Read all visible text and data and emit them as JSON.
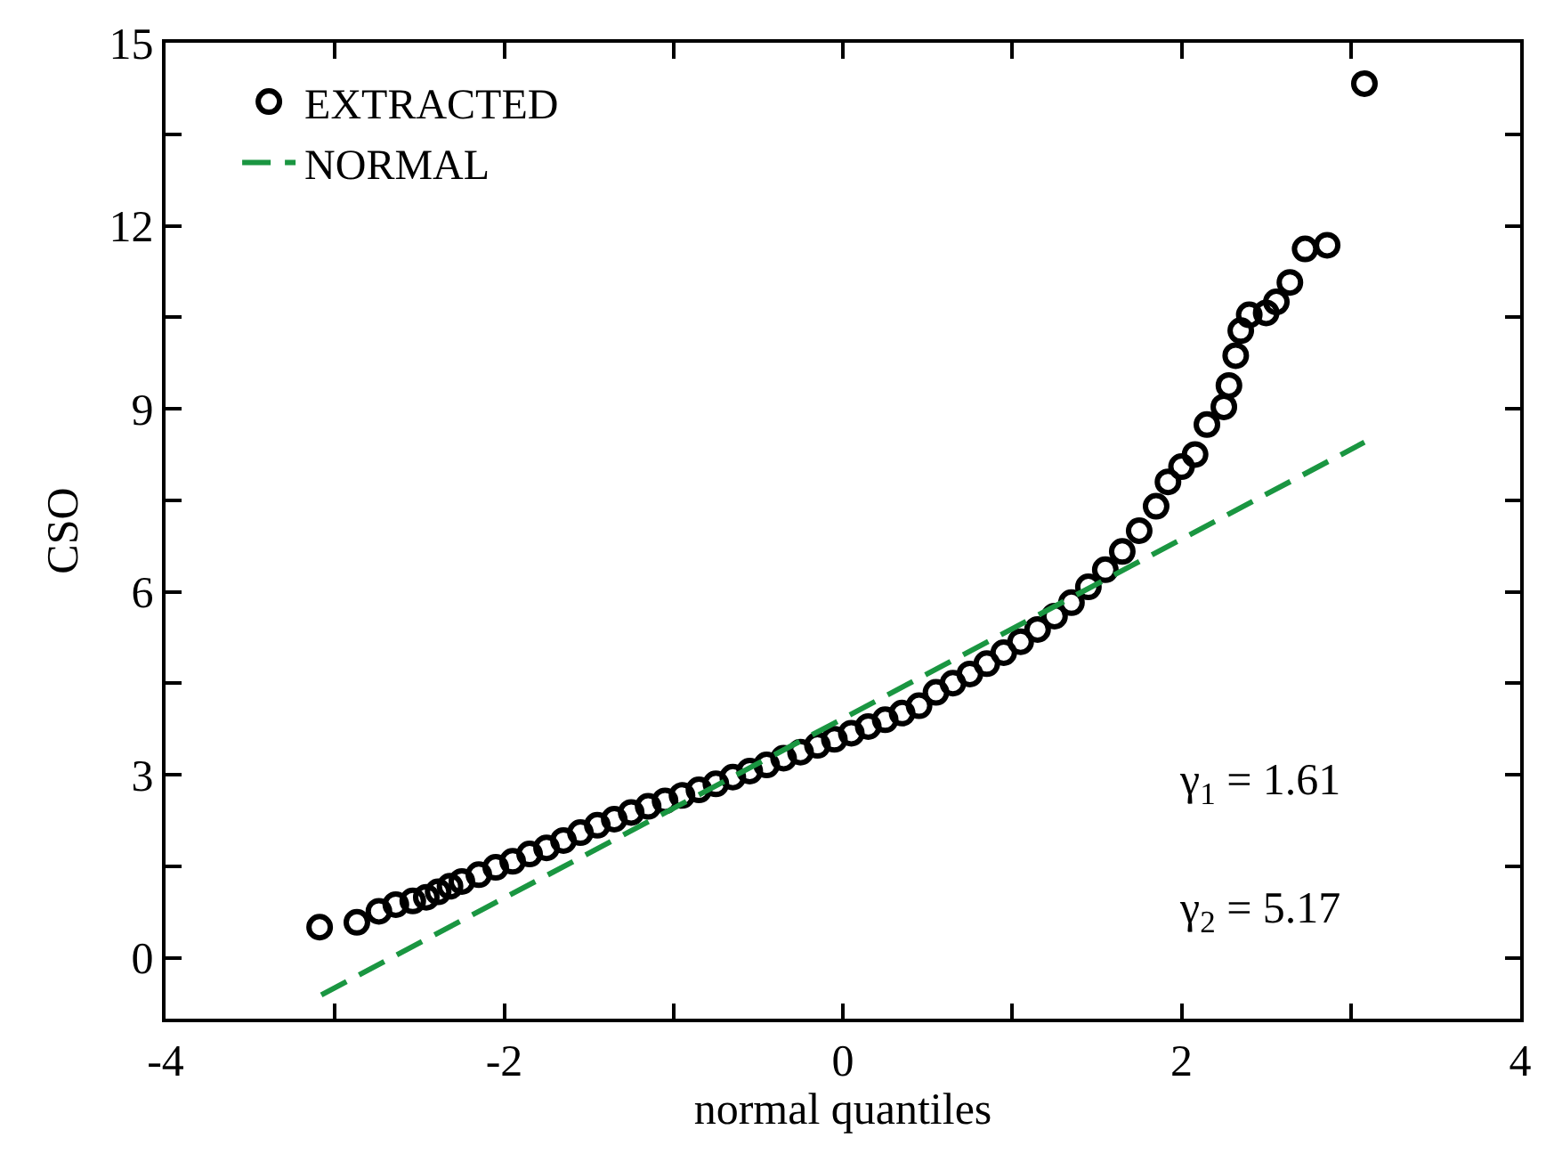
{
  "chart_data": {
    "type": "scatter",
    "xlabel": "normal quantiles",
    "ylabel": "CSO",
    "xlim": [
      -4,
      4
    ],
    "ylim": [
      -1,
      15
    ],
    "xticks": [
      -4,
      {
        "value": -3,
        "label": null
      },
      -2,
      {
        "value": -1,
        "label": null
      },
      0,
      {
        "value": 1,
        "label": null
      },
      2,
      {
        "value": 3,
        "label": null
      },
      4
    ],
    "yticks": [
      0,
      {
        "value": 1.5,
        "label": null
      },
      3,
      {
        "value": 4.5,
        "label": null
      },
      6,
      {
        "value": 7.5,
        "label": null
      },
      9,
      {
        "value": 10.5,
        "label": null
      },
      12,
      {
        "value": 13.5,
        "label": null
      },
      15
    ],
    "legend": "top left",
    "series": [
      {
        "name": "EXTRACTED",
        "marker": "circle",
        "color": "#000000",
        "x": [
          -3.09,
          -2.87,
          -2.74,
          -2.64,
          -2.54,
          -2.46,
          -2.39,
          -2.32,
          -2.25,
          -2.15,
          -2.05,
          -1.95,
          -1.85,
          -1.75,
          -1.65,
          -1.55,
          -1.45,
          -1.35,
          -1.25,
          -1.15,
          -1.05,
          -0.95,
          -0.85,
          -0.75,
          -0.65,
          -0.55,
          -0.45,
          -0.35,
          -0.25,
          -0.15,
          -0.05,
          0.05,
          0.15,
          0.25,
          0.35,
          0.45,
          0.55,
          0.65,
          0.75,
          0.85,
          0.95,
          1.05,
          1.15,
          1.25,
          1.35,
          1.45,
          1.55,
          1.65,
          1.75,
          1.85,
          1.92,
          2.0,
          2.08,
          2.15,
          2.25,
          2.28,
          2.32,
          2.35,
          2.4,
          2.5,
          2.56,
          2.64,
          2.73,
          2.86,
          3.08
        ],
        "values": [
          0.5,
          0.58,
          0.76,
          0.87,
          0.93,
          0.99,
          1.08,
          1.17,
          1.25,
          1.36,
          1.48,
          1.58,
          1.7,
          1.8,
          1.92,
          2.05,
          2.17,
          2.27,
          2.38,
          2.48,
          2.57,
          2.66,
          2.75,
          2.85,
          2.96,
          3.06,
          3.16,
          3.27,
          3.37,
          3.48,
          3.58,
          3.68,
          3.79,
          3.9,
          4.01,
          4.13,
          4.35,
          4.5,
          4.65,
          4.82,
          5.0,
          5.18,
          5.38,
          5.6,
          5.82,
          6.08,
          6.36,
          6.66,
          7.0,
          7.4,
          7.8,
          8.05,
          8.25,
          8.74,
          9.03,
          9.38,
          9.87,
          10.28,
          10.54,
          10.57,
          10.75,
          11.07,
          11.62,
          11.68,
          14.33
        ]
      },
      {
        "name": "NORMAL",
        "type": "line",
        "line_style": "dashed",
        "color": "#1a9641",
        "x": [
          -3.08,
          3.08
        ],
        "values": [
          -0.61,
          8.45
        ]
      }
    ],
    "annotations": [
      "γ$_{1}$ = 1.61",
      "γ$_{2}$ = 5.17"
    ]
  }
}
